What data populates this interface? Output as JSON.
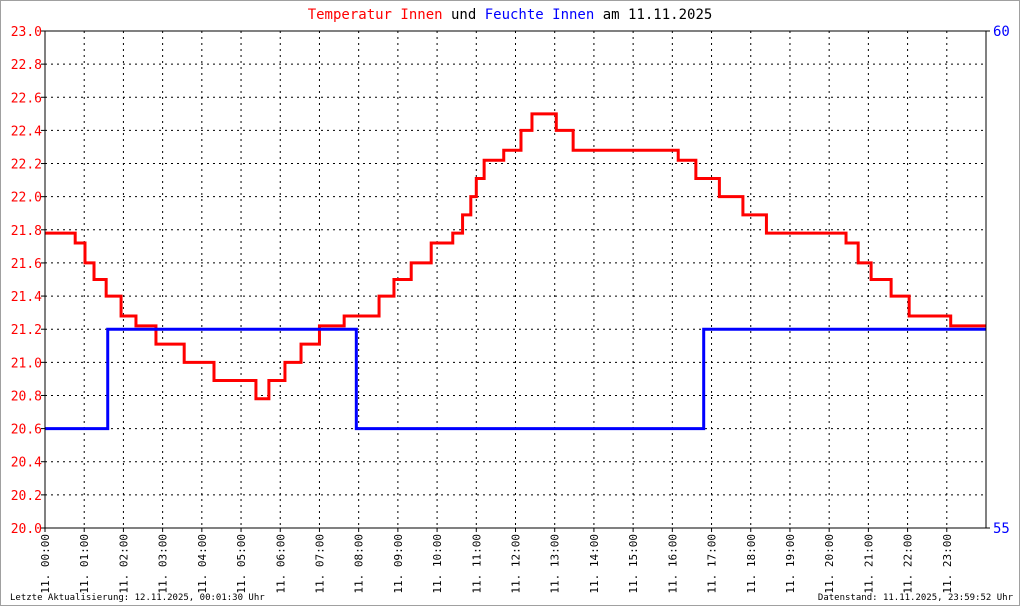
{
  "chart_data": {
    "type": "line",
    "title_parts": [
      {
        "text": "Temperatur Innen",
        "color": "#ff0000"
      },
      {
        "text": "und",
        "color": "#000000"
      },
      {
        "text": "Feuchte Innen",
        "color": "#0000ff"
      },
      {
        "text": "am 11.11.2025",
        "color": "#000000"
      }
    ],
    "x_unit": "hour of day",
    "xlim": [
      0,
      24
    ],
    "x_tick_labels": [
      "11. 00:00",
      "11. 01:00",
      "11. 02:00",
      "11. 03:00",
      "11. 04:00",
      "11. 05:00",
      "11. 06:00",
      "11. 07:00",
      "11. 08:00",
      "11. 09:00",
      "11. 10:00",
      "11. 11:00",
      "11. 12:00",
      "11. 13:00",
      "11. 14:00",
      "11. 15:00",
      "11. 16:00",
      "11. 17:00",
      "11. 18:00",
      "11. 19:00",
      "11. 20:00",
      "11. 21:00",
      "11. 22:00",
      "11. 23:00"
    ],
    "y_left": {
      "ylim": [
        20.0,
        23.0
      ],
      "tick_labels": [
        "20.0",
        "20.2",
        "20.4",
        "20.6",
        "20.8",
        "21.0",
        "21.2",
        "21.4",
        "21.6",
        "21.8",
        "22.0",
        "22.2",
        "22.4",
        "22.6",
        "22.8",
        "23.0"
      ],
      "color": "#ff0000"
    },
    "y_right": {
      "ylim": [
        55,
        60
      ],
      "tick_labels": [
        "55",
        "60"
      ],
      "color": "#0000ff"
    },
    "grid": true,
    "series": [
      {
        "name": "Temperatur Innen",
        "axis": "left",
        "color": "#ff0000",
        "step": true,
        "x": [
          0,
          0.77,
          1.02,
          1.25,
          1.56,
          1.94,
          2.32,
          2.83,
          3.55,
          4.31,
          5.38,
          5.71,
          6.12,
          6.53,
          7.0,
          7.63,
          8.52,
          8.9,
          9.34,
          9.85,
          10.4,
          10.65,
          10.86,
          11.0,
          11.2,
          11.7,
          12.14,
          12.42,
          13.04,
          13.47,
          16.15,
          16.6,
          17.2,
          17.8,
          18.4,
          20.43,
          20.74,
          21.07,
          21.58,
          22.04,
          23.1,
          24
        ],
        "y": [
          21.78,
          21.72,
          21.6,
          21.5,
          21.4,
          21.28,
          21.22,
          21.11,
          21.0,
          20.89,
          20.78,
          20.89,
          21.0,
          21.11,
          21.22,
          21.28,
          21.4,
          21.5,
          21.6,
          21.72,
          21.78,
          21.89,
          22.0,
          22.11,
          22.22,
          22.28,
          22.4,
          22.5,
          22.4,
          22.28,
          22.22,
          22.11,
          22.0,
          21.89,
          21.78,
          21.72,
          21.6,
          21.5,
          21.4,
          21.28,
          21.22,
          21.22
        ]
      },
      {
        "name": "Feuchte Innen",
        "axis": "right",
        "color": "#0000ff",
        "step": true,
        "x": [
          0,
          1.6,
          7.94,
          16.8,
          24
        ],
        "y": [
          56,
          57,
          56,
          57,
          57
        ]
      }
    ]
  },
  "footer": {
    "last_update": "Letzte Aktualisierung: 12.11.2025, 00:01:30 Uhr",
    "data_state": "Datenstand: 11.11.2025, 23:59:52 Uhr"
  }
}
